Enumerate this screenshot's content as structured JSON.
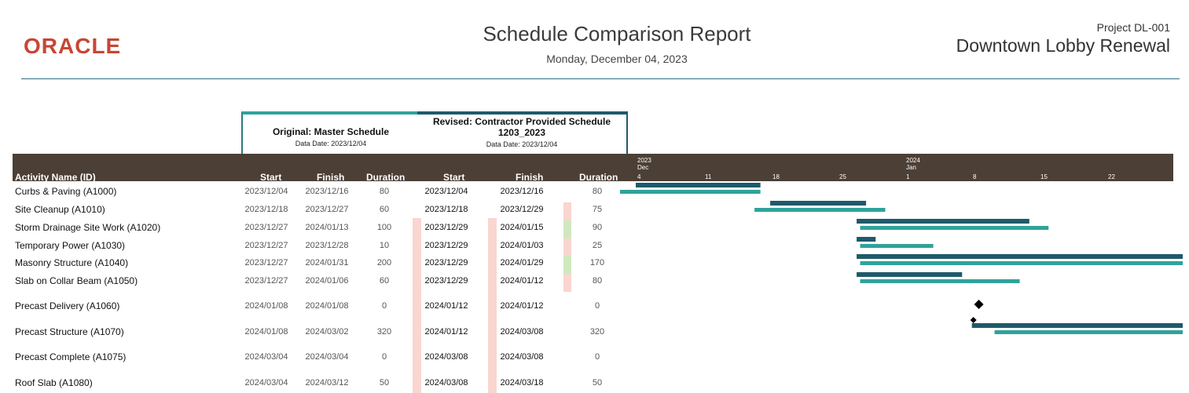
{
  "logo": {
    "text": "ORACLE"
  },
  "report": {
    "title": "Schedule Comparison Report",
    "date": "Monday, December 04, 2023"
  },
  "project": {
    "id": "Project DL-001",
    "name": "Downtown Lobby Renewal"
  },
  "original": {
    "title": "Original: Master Schedule",
    "data_date": "Data Date: 2023/12/04"
  },
  "revised": {
    "title_line1": "Revised: Contractor Provided Schedule",
    "title_line2": "1203_2023",
    "data_date": "Data Date: 2023/12/04"
  },
  "columns": {
    "name": "Activity Name (ID)",
    "start": "Start",
    "finish": "Finish",
    "duration": "Duration"
  },
  "timeline": {
    "years": [
      {
        "year": "2023",
        "month": "Dec"
      },
      {
        "year": "2024",
        "month": "Jan"
      }
    ],
    "ticks": [
      "4",
      "11",
      "18",
      "25",
      "1",
      "8",
      "15",
      "22"
    ]
  },
  "colors": {
    "header": "#4b3f36",
    "original_bar": "#1e5a6b",
    "revised_bar": "#2fa39a",
    "delay": "#f9d6cf",
    "improved": "#cfe8bf",
    "logo": "#c74634"
  },
  "rows": [
    {
      "name": "Curbs & Paving (A1000)",
      "o_start": "2023/12/04",
      "o_finish": "2023/12/16",
      "o_dur": "80",
      "r_start": "2023/12/04",
      "r_finish": "2023/12/16",
      "r_dur": "80",
      "dur_change": "none"
    },
    {
      "name": "Site Cleanup (A1010)",
      "o_start": "2023/12/18",
      "o_finish": "2023/12/27",
      "o_dur": "60",
      "r_start": "2023/12/18",
      "r_finish": "2023/12/29",
      "r_dur": "75",
      "dur_change": "increase"
    },
    {
      "name": "Storm Drainage Site Work (A1020)",
      "o_start": "2023/12/27",
      "o_finish": "2024/01/13",
      "o_dur": "100",
      "r_start": "2023/12/29",
      "r_finish": "2024/01/15",
      "r_dur": "90",
      "dur_change": "decrease"
    },
    {
      "name": "Temporary Power (A1030)",
      "o_start": "2023/12/27",
      "o_finish": "2023/12/28",
      "o_dur": "10",
      "r_start": "2023/12/29",
      "r_finish": "2024/01/03",
      "r_dur": "25",
      "dur_change": "increase"
    },
    {
      "name": "Masonry Structure (A1040)",
      "o_start": "2023/12/27",
      "o_finish": "2024/01/31",
      "o_dur": "200",
      "r_start": "2023/12/29",
      "r_finish": "2024/01/29",
      "r_dur": "170",
      "dur_change": "decrease"
    },
    {
      "name": "Slab on Collar Beam (A1050)",
      "o_start": "2023/12/27",
      "o_finish": "2024/01/06",
      "o_dur": "60",
      "r_start": "2023/12/29",
      "r_finish": "2024/01/12",
      "r_dur": "80",
      "dur_change": "increase"
    },
    {
      "name": "Precast Delivery (A1060)",
      "o_start": "2024/01/08",
      "o_finish": "2024/01/08",
      "o_dur": "0",
      "r_start": "2024/01/12",
      "r_finish": "2024/01/12",
      "r_dur": "0",
      "dur_change": "none"
    },
    {
      "name": "Precast Structure (A1070)",
      "o_start": "2024/01/08",
      "o_finish": "2024/03/02",
      "o_dur": "320",
      "r_start": "2024/01/12",
      "r_finish": "2024/03/08",
      "r_dur": "320",
      "dur_change": "none"
    },
    {
      "name": "Precast Complete (A1075)",
      "o_start": "2024/03/04",
      "o_finish": "2024/03/04",
      "o_dur": "0",
      "r_start": "2024/03/08",
      "r_finish": "2024/03/08",
      "r_dur": "0",
      "dur_change": "none"
    },
    {
      "name": "Roof Slab (A1080)",
      "o_start": "2024/03/04",
      "o_finish": "2024/03/12",
      "o_dur": "50",
      "r_start": "2024/03/08",
      "r_finish": "2024/03/18",
      "r_dur": "50",
      "dur_change": "none"
    }
  ]
}
